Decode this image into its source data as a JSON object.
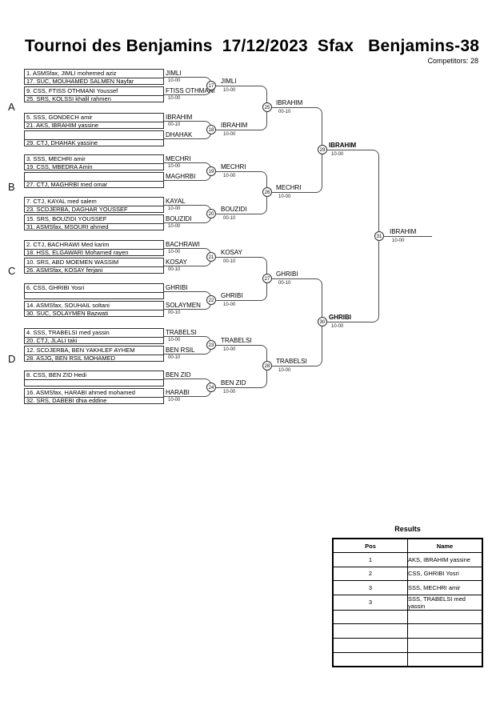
{
  "title": "Tournoi des Benjamins  17/12/2023  Sfax   Benjamins-38",
  "competitors_label": "Competitors: 28",
  "groups": [
    "A",
    "B",
    "C",
    "D"
  ],
  "round1": [
    {
      "p1": "1. ASMSfax, JIMLI mohemed aziz",
      "p2": "17. SUC, MOUHAMED SALMEN Nayfar",
      "winner": "JIMLI",
      "score": "10-00"
    },
    {
      "p1": "9. CSS, FTISS OTHMANI Youssef",
      "p2": "25. SRS, KOLSSI khalil rahmen",
      "winner": "FTISS OTHMANI",
      "score": "10-00"
    },
    {
      "p1": "5. SSS, GONDECH amir",
      "p2": "21. AKS, IBRAHIM yassine",
      "winner": "IBRAHIM",
      "score": "00-10"
    },
    {
      "p1": "",
      "p2": "29. CTJ, DHAHAK yassine",
      "winner": "DHAHAK",
      "score": ""
    },
    {
      "p1": "3. SSS, MECHRI amir",
      "p2": "19. CSS, MBEDRA Amin",
      "winner": "MECHRI",
      "score": "10-00"
    },
    {
      "p1": "",
      "p2": "27. CTJ, MAGHRBI med omar",
      "winner": "MAGHRBI",
      "score": ""
    },
    {
      "p1": "7. CTJ, KAYAL med salem",
      "p2": "23. SCDJERBA, DAGHAR YOUSSEF",
      "winner": "KAYAL",
      "score": "10-00"
    },
    {
      "p1": "15. SRS, BOUZIDI YOUSSEF",
      "p2": "31. ASMSfax, MSOURI ahmed",
      "winner": "BOUZIDI",
      "score": "10-00"
    },
    {
      "p1": "2. CTJ, BACHRAWI Med karim",
      "p2": "18. HSS, ELGAWARI Mohamed rayen",
      "winner": "BACHRAWI",
      "score": "10-00"
    },
    {
      "p1": "10. SRS, ABD MOEMEN WASSIM",
      "p2": "26. ASMSfax, KOSAY ferjani",
      "winner": "KOSAY",
      "score": "00-10"
    },
    {
      "p1": "6. CSS, GHRIBI Yosri",
      "p2": "",
      "winner": "GHRIBI",
      "score": ""
    },
    {
      "p1": "14. ASMSfax, SOUHAIL soltani",
      "p2": "30. SUC, SOLAYMEN Bazwati",
      "winner": "SOLAYMEN",
      "score": "00-10"
    },
    {
      "p1": "4. SSS, TRABELSI med yassin",
      "p2": "20. CTJ, JLALI taki",
      "winner": "TRABELSI",
      "score": "10-00"
    },
    {
      "p1": "12. SCDJERBA, BEN YAKHLEF AYHEM",
      "p2": "28. ASJG, BEN RSIL MOHAMED",
      "winner": "BEN RSIL",
      "score": "00-10"
    },
    {
      "p1": "8. CSS, BEN ZID Hedi",
      "p2": "",
      "winner": "BEN ZID",
      "score": ""
    },
    {
      "p1": "16. ASMSfax, HARABI ahmed mohamed",
      "p2": "32. SRS, DABEBI dhia eddine",
      "winner": "HARABI",
      "score": "10-00"
    }
  ],
  "round2": [
    {
      "no": "17",
      "winner": "JIMLI",
      "score": "10-00"
    },
    {
      "no": "18",
      "winner": "IBRAHIM",
      "score": "10-00"
    },
    {
      "no": "19",
      "winner": "MECHRI",
      "score": "10-00"
    },
    {
      "no": "20",
      "winner": "BOUZIDI",
      "score": "00-10"
    },
    {
      "no": "21",
      "winner": "KOSAY",
      "score": "00-10"
    },
    {
      "no": "22",
      "winner": "GHRIBI",
      "score": "10-00"
    },
    {
      "no": "23",
      "winner": "TRABELSI",
      "score": "10-00"
    },
    {
      "no": "24",
      "winner": "BEN ZID",
      "score": "10-00"
    }
  ],
  "quarterfinals": [
    {
      "no": "25",
      "winner": "IBRAHIM",
      "score": "00-10"
    },
    {
      "no": "26",
      "winner": "MECHRI",
      "score": "10-00"
    },
    {
      "no": "27",
      "winner": "GHRIBI",
      "score": "00-10"
    },
    {
      "no": "28",
      "winner": "TRABELSI",
      "score": "10-00"
    }
  ],
  "semifinals": [
    {
      "no": "29",
      "winner": "IBRAHIM",
      "score": "10-00",
      "bold": true
    },
    {
      "no": "30",
      "winner": "GHRIBI",
      "score": "10-00",
      "bold": true
    }
  ],
  "final": {
    "no": "31",
    "winner": "IBRAHIM",
    "score": "10-00"
  },
  "results": {
    "title": "Results",
    "headers": [
      "Pos",
      "Name"
    ],
    "rows": [
      [
        "1",
        "AKS, IBRAHIM yassine"
      ],
      [
        "2",
        "CSS, GHRIBI Yosri"
      ],
      [
        "3",
        "SSS, MECHRI amir"
      ],
      [
        "3",
        "SSS, TRABELSI med yassin"
      ],
      [
        "",
        ""
      ],
      [
        "",
        ""
      ],
      [
        "",
        ""
      ],
      [
        "",
        ""
      ]
    ]
  },
  "colors": {
    "line": "#4d4d4d",
    "box_border": "#2f2f2f",
    "text": "#000000",
    "background": "#ffffff"
  }
}
